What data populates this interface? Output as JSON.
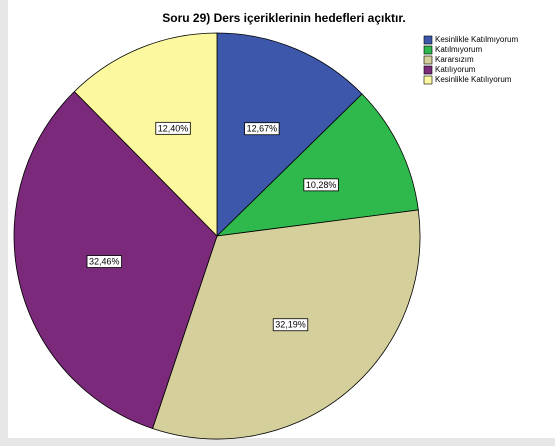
{
  "chart_data": {
    "type": "pie",
    "title": "Soru 29) Ders içeriklerinin hedefleri açıktır.",
    "categories": [
      "Kesinlikle Katılmıyorum",
      "Katılmıyorum",
      "Kararsızım",
      "Katılıyorum",
      "Kesinlikle Katılıyorum"
    ],
    "values": [
      12.67,
      10.28,
      32.19,
      32.46,
      12.4
    ],
    "value_labels": [
      "12,67%",
      "10,28%",
      "32,19%",
      "32,46%",
      "12,40%"
    ],
    "colors": [
      "#3d58ab",
      "#2fb84b",
      "#d5cf9c",
      "#7b297a",
      "#fbf89f"
    ],
    "legend": "upper right"
  }
}
